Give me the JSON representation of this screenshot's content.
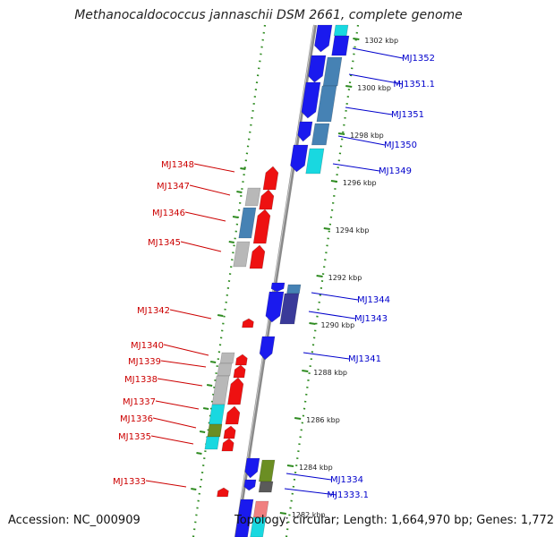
{
  "title": "Methanocaldococcus jannaschii DSM 2661, complete genome",
  "footer": {
    "accession": "Accession: NC_000909",
    "topology": "Topology: circular; Length: 1,664,970 bp; Genes: 1,772"
  },
  "colors": {
    "minus_strand_label": "#cc0000",
    "plus_strand_label": "#0000cc",
    "backbone": "#888888",
    "guide_dots": "#2e8b20"
  },
  "kbp_ticks": [
    "1302 kbp",
    "1300 kbp",
    "1298 kbp",
    "1296 kbp",
    "1294 kbp",
    "1292 kbp",
    "1290 kbp",
    "1288 kbp",
    "1286 kbp",
    "1284 kbp",
    "1282 kbp"
  ],
  "genes_right": [
    "MJ1352",
    "MJ1351.1",
    "MJ1351",
    "MJ1350",
    "MJ1349",
    "MJ1344",
    "MJ1343",
    "MJ1341",
    "MJ1334",
    "MJ1333.1"
  ],
  "genes_left": [
    "MJ1348",
    "MJ1347",
    "MJ1346",
    "MJ1345",
    "MJ1342",
    "MJ1340",
    "MJ1339",
    "MJ1338",
    "MJ1337",
    "MJ1336",
    "MJ1335",
    "MJ1333"
  ]
}
